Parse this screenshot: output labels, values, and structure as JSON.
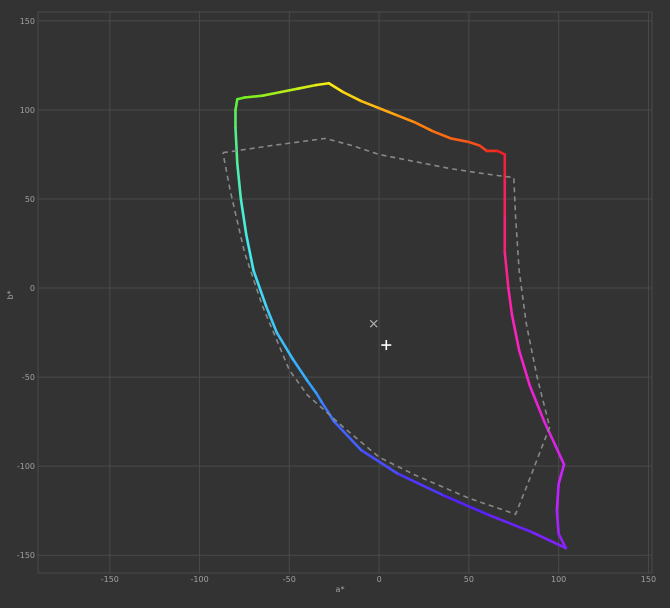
{
  "chart_data": {
    "type": "line",
    "title": "",
    "xlabel": "a*",
    "ylabel": "b*",
    "xlim": [
      -190,
      152
    ],
    "ylim": [
      -160,
      155
    ],
    "xticks": [
      -150,
      -100,
      -50,
      0,
      50,
      100,
      150
    ],
    "yticks": [
      150,
      100,
      50,
      0,
      -50,
      -100,
      -150
    ],
    "grid": true,
    "background": "#333333",
    "grid_color": "#4a4a4a",
    "series": [
      {
        "style": "solid-spectral",
        "colors": [
          "#66ee22",
          "#ffee11",
          "#ff7711",
          "#ee2222",
          "#ff22bb",
          "#cc22ff",
          "#5522ff",
          "#3399ff",
          "#44eeee",
          "#66ee22"
        ],
        "points": [
          [
            -79,
            106
          ],
          [
            -75,
            107
          ],
          [
            -65,
            108
          ],
          [
            -55,
            110
          ],
          [
            -45,
            112
          ],
          [
            -35,
            114
          ],
          [
            -28,
            115
          ],
          [
            -20,
            110
          ],
          [
            -10,
            105
          ],
          [
            0,
            101
          ],
          [
            10,
            97
          ],
          [
            20,
            93
          ],
          [
            30,
            88
          ],
          [
            40,
            84
          ],
          [
            50,
            82
          ],
          [
            56,
            80
          ],
          [
            60,
            77
          ],
          [
            66,
            77
          ],
          [
            70,
            75
          ],
          [
            70,
            60
          ],
          [
            70,
            40
          ],
          [
            70,
            20
          ],
          [
            72,
            0
          ],
          [
            74,
            -15
          ],
          [
            78,
            -35
          ],
          [
            84,
            -55
          ],
          [
            92,
            -75
          ],
          [
            98,
            -88
          ],
          [
            103,
            -99
          ],
          [
            100,
            -110
          ],
          [
            99,
            -125
          ],
          [
            100,
            -138
          ],
          [
            104,
            -146
          ],
          [
            85,
            -137
          ],
          [
            60,
            -127
          ],
          [
            35,
            -116
          ],
          [
            10,
            -104
          ],
          [
            -10,
            -91
          ],
          [
            -25,
            -75
          ],
          [
            -32,
            -64
          ],
          [
            -35,
            -59
          ],
          [
            -40,
            -52
          ],
          [
            -48,
            -40
          ],
          [
            -57,
            -25
          ],
          [
            -63,
            -10
          ],
          [
            -70,
            10
          ],
          [
            -74,
            30
          ],
          [
            -77,
            50
          ],
          [
            -79,
            70
          ],
          [
            -80,
            90
          ],
          [
            -80,
            100
          ],
          [
            -79,
            106
          ]
        ]
      },
      {
        "style": "dashed",
        "color": "#888888",
        "points": [
          [
            -87,
            76
          ],
          [
            -60,
            80
          ],
          [
            -30,
            84
          ],
          [
            -15,
            80
          ],
          [
            0,
            75
          ],
          [
            20,
            71
          ],
          [
            40,
            67
          ],
          [
            60,
            64
          ],
          [
            75,
            62
          ],
          [
            76,
            40
          ],
          [
            78,
            10
          ],
          [
            82,
            -20
          ],
          [
            88,
            -50
          ],
          [
            95,
            -78
          ],
          [
            82,
            -112
          ],
          [
            76,
            -127
          ],
          [
            50,
            -118
          ],
          [
            20,
            -105
          ],
          [
            0,
            -95
          ],
          [
            -20,
            -78
          ],
          [
            -40,
            -60
          ],
          [
            -50,
            -46
          ],
          [
            -65,
            -10
          ],
          [
            -75,
            20
          ],
          [
            -83,
            55
          ],
          [
            -87,
            76
          ]
        ]
      }
    ],
    "markers": [
      {
        "symbol": "×",
        "x": -3,
        "y": -20,
        "color": "#aaaaaa"
      },
      {
        "symbol": "+",
        "x": 4,
        "y": -32,
        "color": "#ffffff"
      }
    ]
  }
}
